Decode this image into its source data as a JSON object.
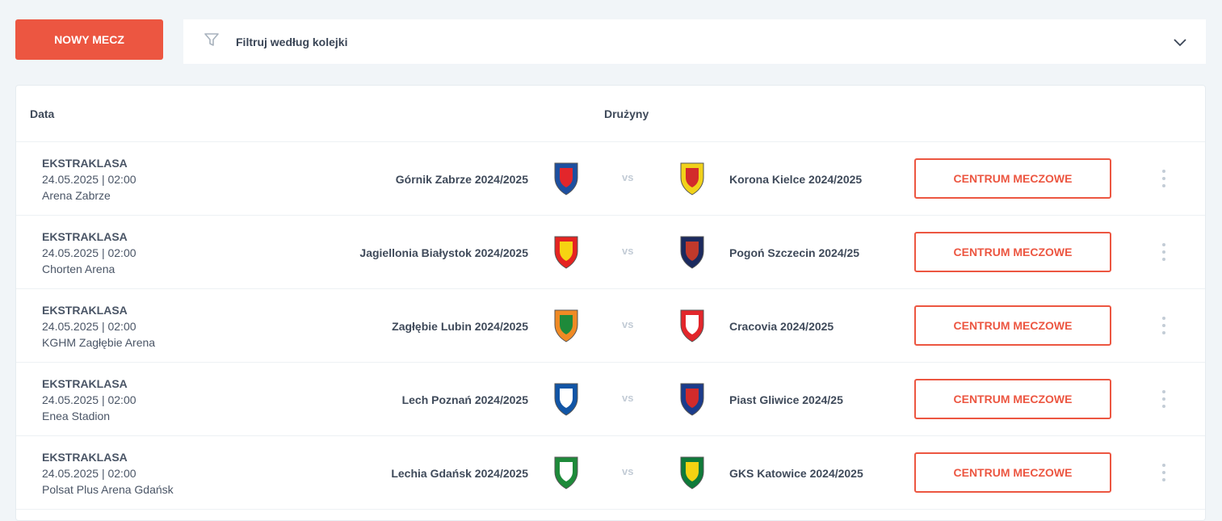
{
  "toolbar": {
    "new_match": "NOWY MECZ",
    "filter_label": "Filtruj według kolejki"
  },
  "table": {
    "col_date": "Data",
    "col_teams": "Drużyny"
  },
  "colors": {
    "accent": "#ec5641",
    "background": "#f1f5f8"
  },
  "vs": "vs",
  "action": "CENTRUM MECZOWE",
  "matches": [
    {
      "competition": "EKSTRAKLASA",
      "datetime": "24.05.2025 | 02:00",
      "venue": "Arena Zabrze",
      "home": "Górnik Zabrze 2024/2025",
      "away": "Korona Kielce 2024/2025",
      "home_colors": [
        "#1d4fa0",
        "#e3262b"
      ],
      "away_colors": [
        "#f1d21a",
        "#d22b2b"
      ]
    },
    {
      "competition": "EKSTRAKLASA",
      "datetime": "24.05.2025 | 02:00",
      "venue": "Chorten Arena",
      "home": "Jagiellonia Białystok 2024/2025",
      "away": "Pogoń Szczecin 2024/25",
      "home_colors": [
        "#e52421",
        "#f6d312"
      ],
      "away_colors": [
        "#1b2a5e",
        "#c0392b"
      ]
    },
    {
      "competition": "EKSTRAKLASA",
      "datetime": "24.05.2025 | 02:00",
      "venue": "KGHM Zagłębie Arena",
      "home": "Zagłębie Lubin 2024/2025",
      "away": "Cracovia 2024/2025",
      "home_colors": [
        "#f08a24",
        "#1e8a3a"
      ],
      "away_colors": [
        "#e2262b",
        "#ffffff"
      ]
    },
    {
      "competition": "EKSTRAKLASA",
      "datetime": "24.05.2025 | 02:00",
      "venue": "Enea Stadion",
      "home": "Lech Poznań 2024/2025",
      "away": "Piast Gliwice 2024/25",
      "home_colors": [
        "#1155a6",
        "#ffffff"
      ],
      "away_colors": [
        "#1b3c8c",
        "#d22b2b"
      ]
    },
    {
      "competition": "EKSTRAKLASA",
      "datetime": "24.05.2025 | 02:00",
      "venue": "Polsat Plus Arena Gdańsk",
      "home": "Lechia Gdańsk 2024/2025",
      "away": "GKS Katowice 2024/2025",
      "home_colors": [
        "#1e8a3a",
        "#ffffff"
      ],
      "away_colors": [
        "#0f7a3a",
        "#f6d312"
      ]
    }
  ]
}
